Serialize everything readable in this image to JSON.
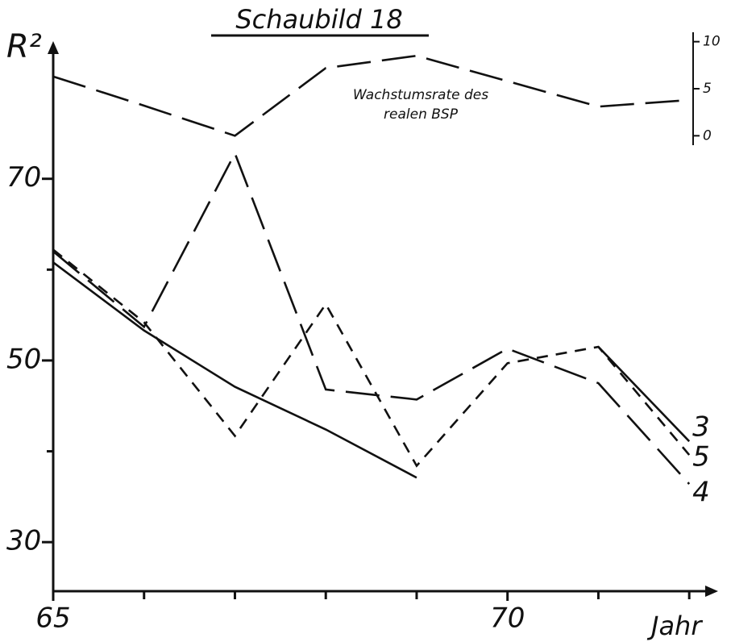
{
  "chart_data": {
    "type": "line",
    "title": "Schaubild 18",
    "y_label": "R²",
    "x_label": "Jahr",
    "annotation": [
      "Wachstumsrate des",
      "realen BSP"
    ],
    "x": [
      65,
      66,
      67,
      68,
      69,
      70,
      71,
      72
    ],
    "series": [
      {
        "name": "3",
        "color": "#111111",
        "dash": "solid",
        "values": [
          60.8,
          53.3,
          47.1,
          42.4,
          37.1,
          null,
          51.5,
          41.1
        ]
      },
      {
        "name": "5",
        "color": "#111111",
        "dash": "short",
        "values": [
          62.2,
          54.2,
          41.7,
          56.2,
          38.4,
          49.7,
          51.5,
          39.6
        ]
      },
      {
        "name": "4",
        "color": "#111111",
        "dash": "long",
        "values": [
          62.0,
          53.7,
          72.8,
          46.8,
          45.7,
          51.3,
          47.5,
          36.4
        ]
      },
      {
        "name": "Wachstumsrate des realen BSP",
        "color": "#111111",
        "dash": "long",
        "axis": "y2",
        "values": [
          6.3,
          3.2,
          0,
          7.2,
          8.5,
          5.8,
          3.1,
          3.8
        ]
      }
    ],
    "xlim": [
      65,
      72.3
    ],
    "xticks": [
      65,
      70
    ],
    "minor_xticks": [
      66,
      67,
      68,
      69,
      71,
      72
    ],
    "ylim": [
      24.6,
      84.8
    ],
    "yticks": [
      30,
      50,
      70
    ],
    "minor_yticks": [
      40,
      60
    ],
    "y2lim": [
      -1,
      11
    ],
    "y2ticks": [
      0,
      5,
      10
    ],
    "grid": false
  }
}
